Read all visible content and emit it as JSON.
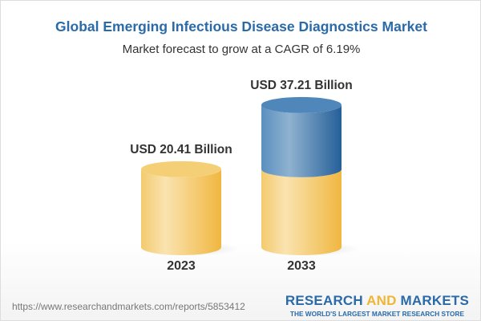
{
  "title": "Global Emerging Infectious Disease Diagnostics Market",
  "subtitle": "Market forecast to grow at a CAGR of 6.19%",
  "chart_data": {
    "type": "bar",
    "style": "3d-cylinder",
    "categories": [
      "2023",
      "2033"
    ],
    "values": [
      20.41,
      37.21
    ],
    "data_labels": [
      "USD 20.41 Billion",
      "USD 37.21 Billion"
    ],
    "unit": "USD Billion",
    "colors": {
      "base": "#f2c35a",
      "growth": "#3f7bb0"
    }
  },
  "footer": {
    "url": "https://www.researchandmarkets.com/reports/5853412",
    "logo_part1": "RESEARCH ",
    "logo_part2": "AND",
    "logo_part3": " MARKETS",
    "tagline": "THE WORLD'S LARGEST MARKET RESEARCH STORE"
  }
}
